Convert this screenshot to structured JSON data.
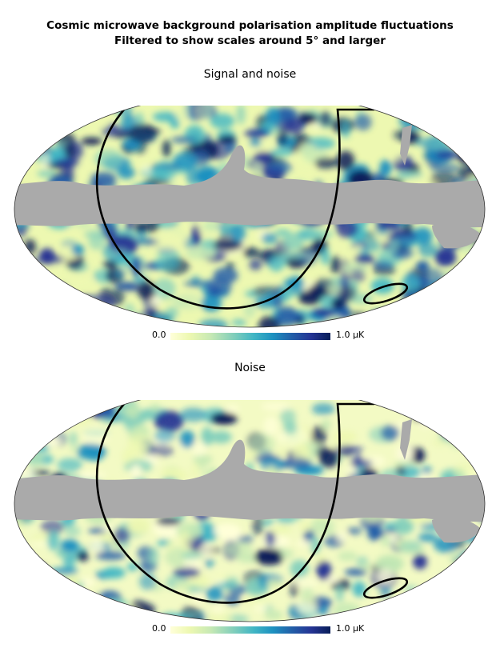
{
  "figure": {
    "title_line1": "Cosmic microwave background polarisation amplitude fluctuations",
    "title_line2": "Filtered to show scales around 5° and larger"
  },
  "panels": [
    {
      "title": "Signal and noise",
      "colorbar": {
        "min_label": "0.0",
        "max_label": "1.0 µK"
      }
    },
    {
      "title": "Noise",
      "colorbar": {
        "min_label": "0.0",
        "max_label": "1.0 µK"
      }
    }
  ],
  "colors": {
    "masked_region": "#aaaaaa",
    "outline": "#000000",
    "colormap": [
      "#ffffd9",
      "#edf8b1",
      "#c7e9b4",
      "#7fcdbb",
      "#41b6c4",
      "#1d91c0",
      "#225ea8",
      "#253494",
      "#081d58"
    ]
  },
  "projection": "mollweide"
}
